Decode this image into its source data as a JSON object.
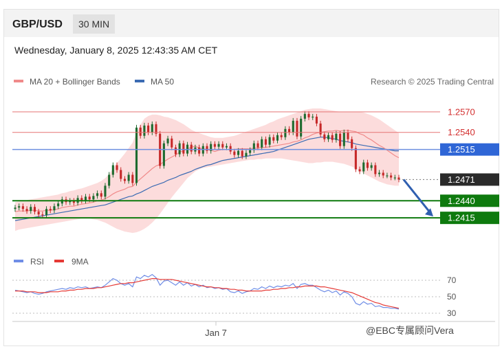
{
  "header": {
    "pair": "GBP/USD",
    "timeframe": "30 MIN"
  },
  "timestamp": "Wednesday, January 8, 2025 12:43:35 AM CET",
  "legend": {
    "ma20": "MA 20 + Bollinger Bands",
    "ma50": "MA 50",
    "credit": "Research © 2025 Trading Central"
  },
  "colors": {
    "ma20": "#f08a8a",
    "ma50": "#3b6bb3",
    "up": "#1d6b2f",
    "down": "#c62828",
    "support": "#0e7a0e",
    "bb_fill": "#fcd6d6"
  },
  "chart_data": [
    {
      "type": "candlestick",
      "y_range": [
        1.238,
        1.2595
      ],
      "levels": [
        {
          "value": 1.257,
          "label": "1.2570",
          "kind": "resistance"
        },
        {
          "value": 1.254,
          "label": "1.2540",
          "kind": "resistance"
        },
        {
          "value": 1.2515,
          "label": "1.2515",
          "kind": "pivot"
        },
        {
          "value": 1.2471,
          "label": "1.2471",
          "kind": "last"
        },
        {
          "value": 1.244,
          "label": "1.2440",
          "kind": "support"
        },
        {
          "value": 1.2415,
          "label": "1.2415",
          "kind": "support"
        }
      ],
      "close": [
        1.243,
        1.2432,
        1.2428,
        1.2425,
        1.2431,
        1.2424,
        1.242,
        1.2419,
        1.2428,
        1.2426,
        1.2432,
        1.2436,
        1.2442,
        1.2438,
        1.244,
        1.2437,
        1.2444,
        1.244,
        1.2446,
        1.2442,
        1.2447,
        1.2451,
        1.2446,
        1.2462,
        1.2478,
        1.2492,
        1.2485,
        1.2472,
        1.2469,
        1.2478,
        1.2466,
        1.2547,
        1.2535,
        1.255,
        1.254,
        1.2552,
        1.2538,
        1.2491,
        1.2524,
        1.2531,
        1.2518,
        1.2508,
        1.2524,
        1.2509,
        1.2522,
        1.2512,
        1.2518,
        1.2509,
        1.252,
        1.2513,
        1.2523,
        1.2519,
        1.2523,
        1.2518,
        1.252,
        1.2512,
        1.2507,
        1.2513,
        1.2505,
        1.251,
        1.2514,
        1.2524,
        1.2518,
        1.253,
        1.2522,
        1.2533,
        1.2528,
        1.2536,
        1.2533,
        1.2545,
        1.254,
        1.2557,
        1.2534,
        1.256,
        1.2567,
        1.2562,
        1.2563,
        1.2553,
        1.2537,
        1.253,
        1.2536,
        1.2529,
        1.2538,
        1.252,
        1.254,
        1.253,
        1.2517,
        1.2486,
        1.2483,
        1.2496,
        1.2488,
        1.2492,
        1.2479,
        1.2481,
        1.2477,
        1.2477,
        1.2474,
        1.2474,
        1.2471
      ],
      "ma20": [
        1.2424,
        1.2425,
        1.2425,
        1.2425,
        1.2426,
        1.2426,
        1.2425,
        1.2425,
        1.2426,
        1.2426,
        1.2427,
        1.2428,
        1.243,
        1.2431,
        1.2432,
        1.2432,
        1.2434,
        1.2435,
        1.2436,
        1.2437,
        1.2438,
        1.244,
        1.2441,
        1.2443,
        1.2446,
        1.245,
        1.2453,
        1.2455,
        1.2457,
        1.246,
        1.2461,
        1.2467,
        1.2472,
        1.2477,
        1.2482,
        1.2487,
        1.2491,
        1.2493,
        1.2497,
        1.2501,
        1.2504,
        1.2507,
        1.2511,
        1.2513,
        1.2516,
        1.2518,
        1.252,
        1.2517,
        1.2516,
        1.2515,
        1.2514,
        1.2512,
        1.2514,
        1.2515,
        1.2515,
        1.2515,
        1.2515,
        1.2516,
        1.2516,
        1.2516,
        1.2516,
        1.2517,
        1.2517,
        1.2518,
        1.2518,
        1.2519,
        1.252,
        1.2521,
        1.2522,
        1.2523,
        1.2524,
        1.2526,
        1.2527,
        1.2529,
        1.2532,
        1.2534,
        1.2537,
        1.2539,
        1.254,
        1.2541,
        1.2542,
        1.2542,
        1.2543,
        1.2542,
        1.2543,
        1.2543,
        1.2542,
        1.2541,
        1.2538,
        1.2536,
        1.2532,
        1.2529,
        1.2525,
        1.2521,
        1.2518,
        1.2514,
        1.251,
        1.2506,
        1.2503
      ],
      "ma50": [
        1.2411,
        1.2412,
        1.2413,
        1.2414,
        1.2415,
        1.2416,
        1.2417,
        1.2418,
        1.2419,
        1.242,
        1.2421,
        1.2422,
        1.2423,
        1.2424,
        1.2425,
        1.2426,
        1.2427,
        1.2428,
        1.2429,
        1.243,
        1.2431,
        1.2432,
        1.2433,
        1.2434,
        1.2436,
        1.2438,
        1.244,
        1.2442,
        1.2444,
        1.2446,
        1.2447,
        1.245,
        1.2452,
        1.2455,
        1.2458,
        1.2461,
        1.2463,
        1.2465,
        1.2467,
        1.247,
        1.2472,
        1.2474,
        1.2477,
        1.2479,
        1.2481,
        1.2483,
        1.2486,
        1.2488,
        1.249,
        1.2492,
        1.2493,
        1.2495,
        1.2497,
        1.2499,
        1.25,
        1.2501,
        1.2502,
        1.2503,
        1.2504,
        1.2505,
        1.2506,
        1.2507,
        1.2508,
        1.2509,
        1.251,
        1.2511,
        1.2512,
        1.2514,
        1.2516,
        1.2518,
        1.252,
        1.2522,
        1.2524,
        1.2526,
        1.2528,
        1.253,
        1.2531,
        1.2532,
        1.2533,
        1.2533,
        1.2532,
        1.2531,
        1.253,
        1.2528,
        1.2527,
        1.2526,
        1.2525,
        1.2523,
        1.2522,
        1.2521,
        1.252,
        1.2519,
        1.2518,
        1.2517,
        1.2516,
        1.2515,
        1.2514,
        1.2513,
        1.2513
      ],
      "bb_upper": [
        1.2438,
        1.2439,
        1.244,
        1.2441,
        1.2442,
        1.2443,
        1.2444,
        1.2445,
        1.2446,
        1.2447,
        1.2448,
        1.2449,
        1.2451,
        1.2452,
        1.2454,
        1.2455,
        1.2457,
        1.2458,
        1.246,
        1.2462,
        1.2464,
        1.2466,
        1.2469,
        1.2473,
        1.2479,
        1.2487,
        1.2495,
        1.2502,
        1.2509,
        1.2517,
        1.2525,
        1.254,
        1.2551,
        1.256,
        1.2564,
        1.2566,
        1.2566,
        1.2565,
        1.2563,
        1.2562,
        1.256,
        1.2558,
        1.2555,
        1.2552,
        1.2548,
        1.2544,
        1.2541,
        1.2539,
        1.2537,
        1.2535,
        1.2533,
        1.2532,
        1.2532,
        1.2532,
        1.2533,
        1.2534,
        1.2535,
        1.2537,
        1.2539,
        1.2541,
        1.2543,
        1.2545,
        1.2547,
        1.2549,
        1.2551,
        1.2554,
        1.2556,
        1.2559,
        1.2561,
        1.2563,
        1.2565,
        1.2567,
        1.2569,
        1.2571,
        1.2573,
        1.2574,
        1.2575,
        1.2575,
        1.2575,
        1.2574,
        1.2573,
        1.2572,
        1.2571,
        1.257,
        1.257,
        1.257,
        1.257,
        1.257,
        1.257,
        1.2569,
        1.2567,
        1.2565,
        1.2562,
        1.2559,
        1.2555,
        1.2551,
        1.2547,
        1.2543,
        1.2539
      ],
      "bb_lower": [
        1.2396,
        1.2398,
        1.2399,
        1.24,
        1.2401,
        1.2402,
        1.2403,
        1.2404,
        1.2405,
        1.2406,
        1.2407,
        1.2408,
        1.2409,
        1.241,
        1.2411,
        1.2412,
        1.2413,
        1.2414,
        1.2414,
        1.2414,
        1.2413,
        1.2412,
        1.241,
        1.2408,
        1.2405,
        1.2402,
        1.2399,
        1.2397,
        1.2395,
        1.2394,
        1.2393,
        1.2394,
        1.2396,
        1.2399,
        1.2403,
        1.2408,
        1.2414,
        1.2421,
        1.2429,
        1.2437,
        1.2445,
        1.2452,
        1.2459,
        1.2466,
        1.2473,
        1.2478,
        1.2483,
        1.2486,
        1.2488,
        1.2489,
        1.249,
        1.2491,
        1.2492,
        1.2493,
        1.2494,
        1.2495,
        1.2496,
        1.2497,
        1.2498,
        1.2499,
        1.25,
        1.25,
        1.2501,
        1.2501,
        1.2502,
        1.2502,
        1.2502,
        1.2502,
        1.2502,
        1.2501,
        1.25,
        1.2499,
        1.2498,
        1.2497,
        1.2496,
        1.2495,
        1.2495,
        1.2496,
        1.2496,
        1.2497,
        1.2497,
        1.2497,
        1.2496,
        1.2495,
        1.2494,
        1.2492,
        1.249,
        1.2487,
        1.2484,
        1.248,
        1.2477,
        1.2474,
        1.2471,
        1.2468,
        1.2466,
        1.2464,
        1.2463,
        1.2462,
        1.2462
      ],
      "forecast": {
        "from": 1.2471,
        "to": 1.2415,
        "direction": "down"
      }
    },
    {
      "type": "line",
      "legend": [
        "RSI",
        "9MA"
      ],
      "y_ticks": [
        70,
        50,
        30
      ],
      "y_range": [
        25,
        80
      ],
      "x_labels": [
        "Jan 7"
      ],
      "series": [
        {
          "name": "RSI",
          "values": [
            58,
            57,
            56,
            55,
            56,
            54,
            53,
            54,
            56,
            57,
            58,
            59,
            60,
            59,
            61,
            60,
            62,
            61,
            62,
            60,
            61,
            62,
            61,
            64,
            68,
            72,
            70,
            66,
            64,
            66,
            62,
            74,
            72,
            76,
            74,
            77,
            73,
            64,
            69,
            70,
            67,
            64,
            68,
            64,
            67,
            63,
            65,
            62,
            64,
            61,
            62,
            60,
            61,
            59,
            60,
            56,
            55,
            57,
            54,
            56,
            57,
            60,
            59,
            62,
            60,
            63,
            61,
            63,
            62,
            64,
            63,
            66,
            60,
            65,
            66,
            64,
            64,
            61,
            58,
            56,
            58,
            55,
            57,
            52,
            56,
            54,
            50,
            42,
            40,
            44,
            41,
            42,
            38,
            39,
            37,
            37,
            36,
            36,
            35
          ]
        },
        {
          "name": "9MA",
          "values": [
            57,
            57,
            57,
            56,
            56,
            56,
            55,
            55,
            55,
            56,
            56,
            56,
            57,
            57,
            58,
            58,
            59,
            59,
            60,
            60,
            60,
            61,
            61,
            62,
            63,
            64,
            65,
            66,
            66,
            67,
            67,
            68,
            69,
            70,
            71,
            72,
            72,
            71,
            71,
            71,
            71,
            70,
            69,
            68,
            67,
            66,
            65,
            64,
            63,
            62,
            62,
            61,
            61,
            60,
            60,
            59,
            59,
            58,
            58,
            57,
            57,
            57,
            57,
            57,
            58,
            58,
            59,
            59,
            60,
            60,
            61,
            61,
            62,
            62,
            63,
            63,
            63,
            63,
            62,
            62,
            61,
            60,
            59,
            58,
            57,
            56,
            55,
            53,
            51,
            49,
            47,
            45,
            43,
            42,
            40,
            39,
            38,
            37,
            36
          ]
        }
      ]
    }
  ],
  "watermark": "@EBC专属顾问Vera"
}
